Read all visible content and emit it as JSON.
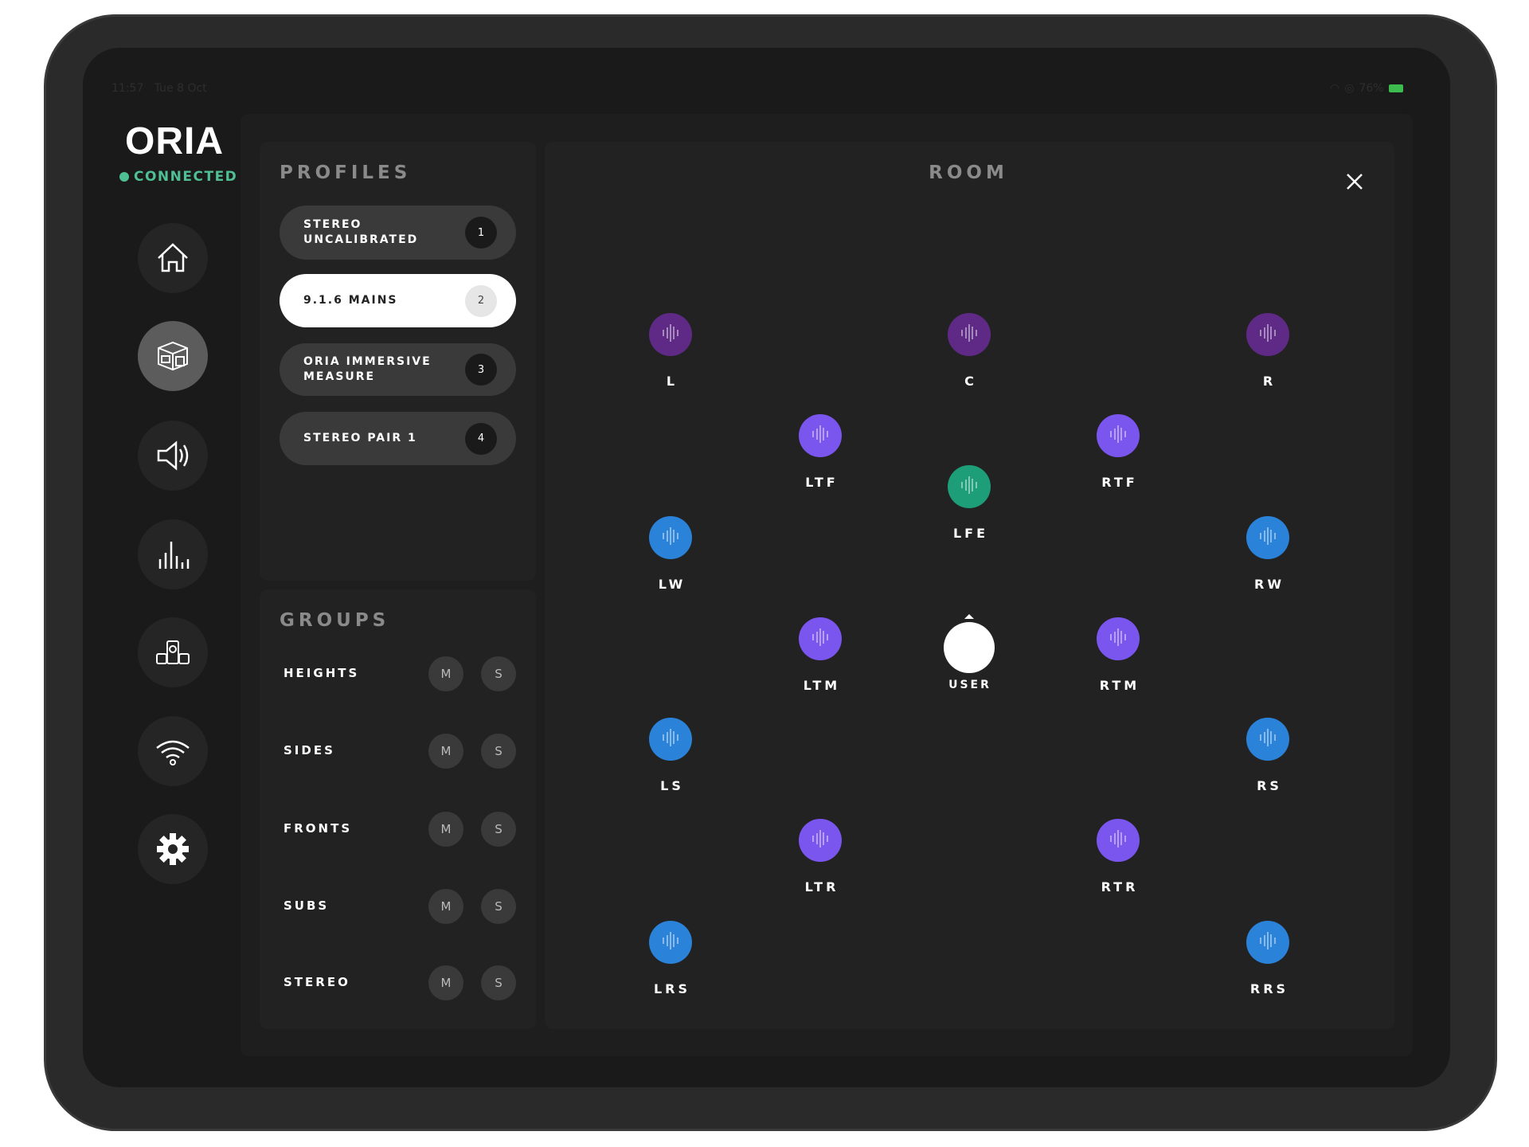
{
  "status_bar": {
    "time": "11:57",
    "date": "Tue 8 Oct",
    "battery": "76%"
  },
  "app": {
    "logo": "ORIA",
    "connection_status": "CONNECTED",
    "accent": "#4fbf94"
  },
  "sidebar": {
    "items": [
      {
        "icon": "home-icon",
        "active": false
      },
      {
        "icon": "room-icon",
        "active": true
      },
      {
        "icon": "speaker-volume-icon",
        "active": false
      },
      {
        "icon": "equalizer-icon",
        "active": false
      },
      {
        "icon": "speaker-system-icon",
        "active": false
      },
      {
        "icon": "wifi-icon",
        "active": false
      },
      {
        "icon": "gear-icon",
        "active": false
      }
    ]
  },
  "profiles": {
    "title": "PROFILES",
    "items": [
      {
        "label": "STEREO\nUNCALIBRATED",
        "number": "1",
        "selected": false
      },
      {
        "label": "9.1.6 MAINS",
        "number": "2",
        "selected": true
      },
      {
        "label": "ORIA IMMERSIVE\nMEASURE",
        "number": "3",
        "selected": false
      },
      {
        "label": "STEREO PAIR 1",
        "number": "4",
        "selected": false
      }
    ]
  },
  "groups": {
    "title": "GROUPS",
    "mute_label": "M",
    "solo_label": "S",
    "items": [
      {
        "label": "HEIGHTS"
      },
      {
        "label": "SIDES"
      },
      {
        "label": "FRONTS"
      },
      {
        "label": "SUBS"
      },
      {
        "label": "STEREO"
      }
    ]
  },
  "room": {
    "title": "ROOM",
    "close_icon": "close-icon",
    "colors": {
      "front": "#5e2a86",
      "height": "#7a55ee",
      "surround": "#2a82d9",
      "sub": "#1d9e78",
      "user": "#ffffff"
    },
    "user_label": "USER",
    "speakers": [
      {
        "label": "L",
        "type": "front"
      },
      {
        "label": "C",
        "type": "front"
      },
      {
        "label": "R",
        "type": "front"
      },
      {
        "label": "LTF",
        "type": "height"
      },
      {
        "label": "RTF",
        "type": "height"
      },
      {
        "label": "LFE",
        "type": "sub"
      },
      {
        "label": "LW",
        "type": "surround"
      },
      {
        "label": "RW",
        "type": "surround"
      },
      {
        "label": "LTM",
        "type": "height"
      },
      {
        "label": "RTM",
        "type": "height"
      },
      {
        "label": "LS",
        "type": "surround"
      },
      {
        "label": "RS",
        "type": "surround"
      },
      {
        "label": "LTR",
        "type": "height"
      },
      {
        "label": "RTR",
        "type": "height"
      },
      {
        "label": "LRS",
        "type": "surround"
      },
      {
        "label": "RRS",
        "type": "surround"
      }
    ]
  }
}
